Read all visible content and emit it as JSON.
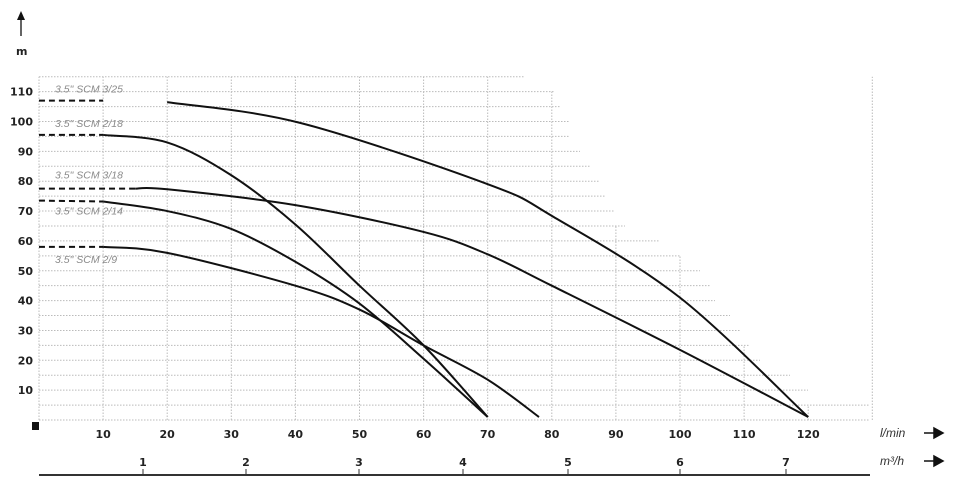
{
  "chart_data": {
    "type": "line",
    "ylabel": "m",
    "xlabel": "l/min",
    "x2label": "m³/h",
    "xlim": [
      0,
      130
    ],
    "ylim": [
      0,
      115
    ],
    "grid": true,
    "yticks": [
      10,
      20,
      30,
      40,
      50,
      60,
      70,
      80,
      90,
      100,
      110
    ],
    "xticks": [
      10,
      20,
      30,
      40,
      50,
      60,
      70,
      80,
      90,
      100,
      110,
      120
    ],
    "x2ticks": [
      1,
      2,
      3,
      4,
      5,
      6,
      7
    ],
    "series": [
      {
        "name": "3.5\" SCM 3/25",
        "shutoff_dashed_to": 15,
        "x": [
          0,
          10,
          20,
          40.8,
          70,
          80.3,
          100,
          120
        ],
        "y": [
          107,
          107,
          106.5,
          99.5,
          79,
          68,
          41,
          1
        ]
      },
      {
        "name": "3.5\" SCM 2/18",
        "shutoff_dashed_to": 10,
        "x": [
          0,
          10,
          20,
          30,
          40,
          50,
          60,
          70
        ],
        "y": [
          95.5,
          95.5,
          93,
          82,
          65.5,
          45,
          25,
          1
        ]
      },
      {
        "name": "3.5\" SCM 3/18",
        "shutoff_dashed_to": 15,
        "x": [
          0,
          15,
          20,
          40,
          60,
          70,
          80,
          100,
          120
        ],
        "y": [
          77.5,
          77.5,
          77.3,
          72,
          63,
          55.5,
          45,
          23.5,
          1
        ]
      },
      {
        "name": "3.5\" SCM 2/14",
        "shutoff_dashed_to": 10,
        "x": [
          0,
          10,
          20,
          30,
          40,
          50,
          60,
          70
        ],
        "y": [
          73.5,
          73.2,
          70,
          64,
          53,
          39,
          20.5,
          1
        ]
      },
      {
        "name": "3.5\" SCM 2/9",
        "shutoff_dashed_to": 10,
        "x": [
          0,
          10,
          20,
          40,
          50,
          60,
          70,
          78
        ],
        "y": [
          58,
          58,
          56,
          45,
          37,
          25,
          13.5,
          1
        ]
      }
    ]
  }
}
